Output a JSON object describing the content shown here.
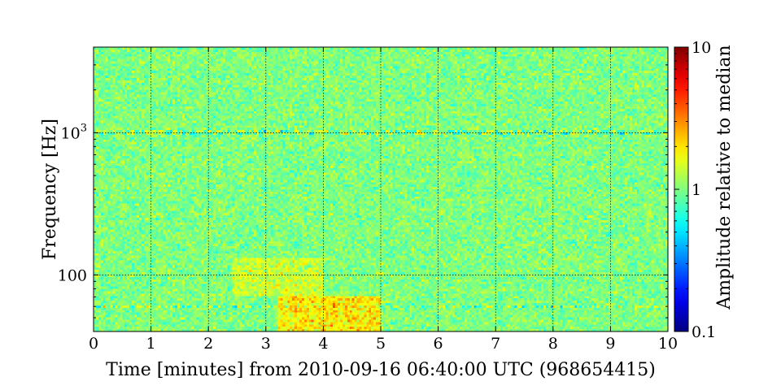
{
  "chart_data": {
    "type": "heatmap",
    "title": "",
    "xlabel": "Time [minutes] from 2010-09-16 06:40:00 UTC (968654415)",
    "ylabel": "Frequency [Hz]",
    "x_unit": "minutes",
    "xlim": [
      0,
      10
    ],
    "ylim": [
      40,
      4000
    ],
    "y_scale": "log",
    "x_ticks": [
      0,
      1,
      2,
      3,
      4,
      5,
      6,
      7,
      8,
      9,
      10
    ],
    "x_tick_labels": [
      "0",
      "1",
      "2",
      "3",
      "4",
      "5",
      "6",
      "7",
      "8",
      "9",
      "10"
    ],
    "y_ticks": [
      100,
      1000
    ],
    "y_tick_labels": [
      "100",
      "10^3"
    ],
    "grid": true,
    "colorbar": {
      "label": "Amplitude relative to median",
      "scale": "log",
      "range": [
        0.1,
        10
      ],
      "ticks": [
        0.1,
        1,
        10
      ],
      "tick_labels": [
        "0.1",
        "1",
        "10"
      ],
      "colormap": "jet"
    },
    "field": {
      "typical_value": 1.0,
      "typical_range": [
        0.5,
        2.0
      ],
      "elevated_regions": [
        {
          "time_range": [
            3.2,
            5.0
          ],
          "freq_range": [
            40,
            70
          ],
          "value": 2.5
        },
        {
          "time_range": [
            2.4,
            4.0
          ],
          "freq_range": [
            70,
            130
          ],
          "value": 1.6
        }
      ],
      "narrow_lines_hz": [
        1000,
        60
      ]
    }
  }
}
